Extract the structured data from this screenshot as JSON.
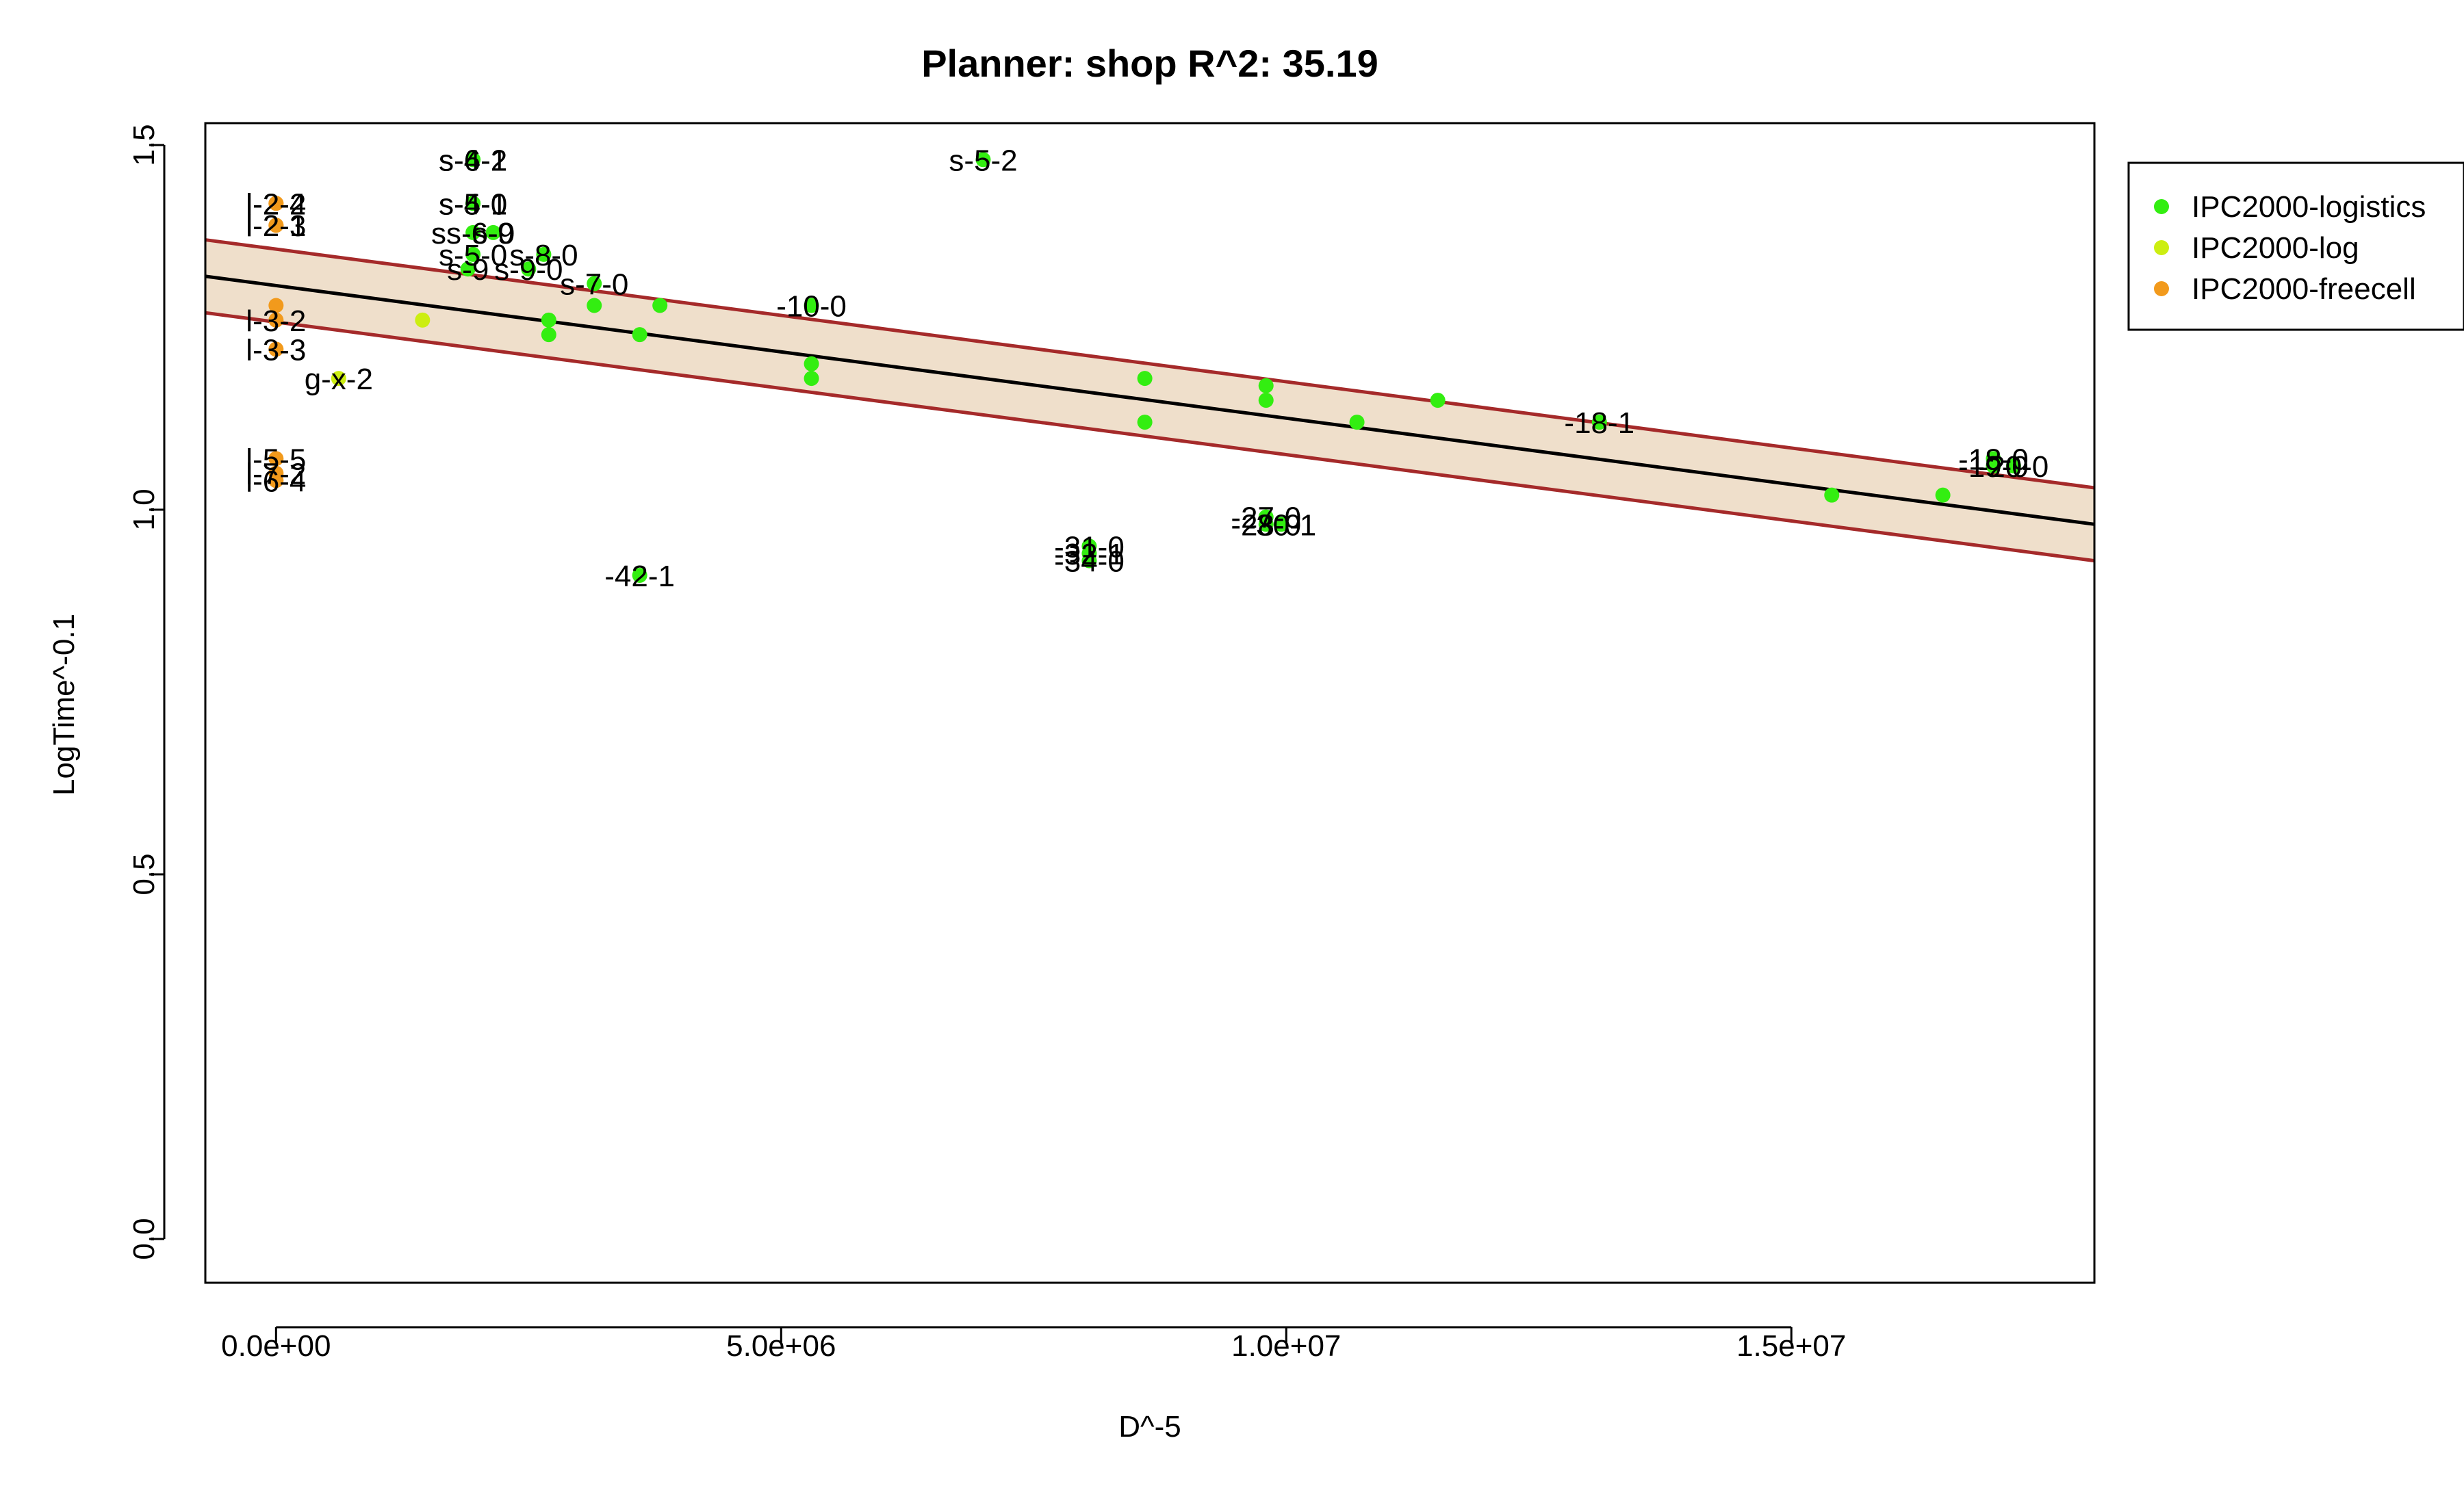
{
  "chart_data": {
    "type": "scatter",
    "title": "Planner: shop R^2: 35.19",
    "xlabel": "D^-5",
    "ylabel": "LogTime^-0.1",
    "xlim": [
      -700000,
      18000000
    ],
    "ylim": [
      -0.06,
      1.53
    ],
    "x_ticks": [
      {
        "value": 0,
        "label": "0.0e+00"
      },
      {
        "value": 5000000,
        "label": "5.0e+06"
      },
      {
        "value": 10000000,
        "label": "1.0e+07"
      },
      {
        "value": 15000000,
        "label": "1.5e+07"
      }
    ],
    "y_ticks": [
      {
        "value": 0.0,
        "label": "0.0"
      },
      {
        "value": 0.5,
        "label": "0.5"
      },
      {
        "value": 1.0,
        "label": "1.0"
      },
      {
        "value": 1.5,
        "label": "1.5"
      }
    ],
    "legend": {
      "position": "top-right",
      "entries": [
        {
          "name": "IPC2000-logistics",
          "color": "#33ee11"
        },
        {
          "name": "IPC2000-log",
          "color": "#ccee11"
        },
        {
          "name": "IPC2000-freecell",
          "color": "#f29a1c"
        }
      ]
    },
    "regression": {
      "color": "#000000",
      "band_color": "#efdfcb",
      "band_line_color": "#a52a2a",
      "fit": [
        [
          -700000,
          1.32
        ],
        [
          18000000,
          0.98
        ]
      ],
      "upper": [
        [
          -700000,
          1.37
        ],
        [
          18000000,
          1.03
        ]
      ],
      "lower": [
        [
          -700000,
          1.27
        ],
        [
          18000000,
          0.93
        ]
      ]
    },
    "series": [
      {
        "name": "IPC2000-logistics",
        "color": "#33ee11",
        "points": [
          {
            "x": 1950000,
            "y": 1.48,
            "label": "s-6-2"
          },
          {
            "x": 1950000,
            "y": 1.48,
            "label": "s-4-1"
          },
          {
            "x": 7000000,
            "y": 1.48,
            "label": "s-5-2"
          },
          {
            "x": 1950000,
            "y": 1.42,
            "label": "s-4-0"
          },
          {
            "x": 1950000,
            "y": 1.42,
            "label": "s-5-1"
          },
          {
            "x": 1950000,
            "y": 1.38,
            "label": "ss-6-0"
          },
          {
            "x": 2150000,
            "y": 1.38,
            "label": "s-9"
          },
          {
            "x": 1950000,
            "y": 1.35,
            "label": "s-5-0"
          },
          {
            "x": 2650000,
            "y": 1.35,
            "label": "s-8-0"
          },
          {
            "x": 1900000,
            "y": 1.33,
            "label": "s-9"
          },
          {
            "x": 2500000,
            "y": 1.33,
            "label": "s-9-0"
          },
          {
            "x": 3150000,
            "y": 1.31,
            "label": "s-7-0"
          },
          {
            "x": 5300000,
            "y": 1.28,
            "label": "-10-0"
          },
          {
            "x": 3150000,
            "y": 1.28,
            "label": ""
          },
          {
            "x": 3800000,
            "y": 1.28,
            "label": ""
          },
          {
            "x": 2700000,
            "y": 1.26,
            "label": ""
          },
          {
            "x": 2700000,
            "y": 1.24,
            "label": ""
          },
          {
            "x": 3600000,
            "y": 1.24,
            "label": ""
          },
          {
            "x": 5300000,
            "y": 1.2,
            "label": ""
          },
          {
            "x": 5300000,
            "y": 1.18,
            "label": ""
          },
          {
            "x": 8600000,
            "y": 1.18,
            "label": ""
          },
          {
            "x": 9800000,
            "y": 1.17,
            "label": ""
          },
          {
            "x": 9800000,
            "y": 1.15,
            "label": ""
          },
          {
            "x": 11500000,
            "y": 1.15,
            "label": ""
          },
          {
            "x": 8600000,
            "y": 1.12,
            "label": ""
          },
          {
            "x": 10700000,
            "y": 1.12,
            "label": ""
          },
          {
            "x": 13100000,
            "y": 1.12,
            "label": "-18-1"
          },
          {
            "x": 17000000,
            "y": 1.07,
            "label": "-18-0"
          },
          {
            "x": 17000000,
            "y": 1.06,
            "label": "-19-0"
          },
          {
            "x": 17200000,
            "y": 1.06,
            "label": "-20-0"
          },
          {
            "x": 15400000,
            "y": 1.02,
            "label": ""
          },
          {
            "x": 16500000,
            "y": 1.02,
            "label": ""
          },
          {
            "x": 9800000,
            "y": 0.99,
            "label": "-27-0"
          },
          {
            "x": 9800000,
            "y": 0.98,
            "label": "-28-0"
          },
          {
            "x": 9950000,
            "y": 0.98,
            "label": "-30-1"
          },
          {
            "x": 8050000,
            "y": 0.95,
            "label": "-31-0"
          },
          {
            "x": 8050000,
            "y": 0.94,
            "label": "-32-1"
          },
          {
            "x": 8050000,
            "y": 0.93,
            "label": "-34-0"
          },
          {
            "x": 3600000,
            "y": 0.91,
            "label": "-42-1"
          }
        ]
      },
      {
        "name": "IPC2000-log",
        "color": "#ccee11",
        "points": [
          {
            "x": 1450000,
            "y": 1.26,
            "label": ""
          },
          {
            "x": 620000,
            "y": 1.18,
            "label": "g-x-2"
          }
        ]
      },
      {
        "name": "IPC2000-freecell",
        "color": "#f29a1c",
        "points": [
          {
            "x": 0,
            "y": 1.42,
            "label": "l-2-4"
          },
          {
            "x": 0,
            "y": 1.42,
            "label": "l-2-2"
          },
          {
            "x": 0,
            "y": 1.39,
            "label": "l-2-3"
          },
          {
            "x": 0,
            "y": 1.39,
            "label": "l-2-1"
          },
          {
            "x": 0,
            "y": 1.28,
            "label": ""
          },
          {
            "x": 0,
            "y": 1.26,
            "label": "l-3-2"
          },
          {
            "x": 0,
            "y": 1.22,
            "label": "l-3-3"
          },
          {
            "x": 0,
            "y": 1.07,
            "label": "l-5-5"
          },
          {
            "x": 0,
            "y": 1.05,
            "label": "l-7-2"
          },
          {
            "x": 0,
            "y": 1.04,
            "label": "l-6-4"
          }
        ]
      }
    ]
  }
}
